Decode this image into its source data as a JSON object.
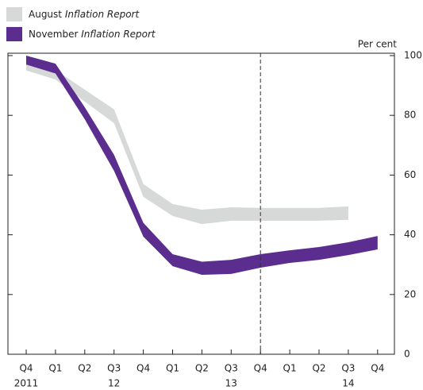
{
  "chart_data": {
    "type": "band",
    "unit_label": "Per cent",
    "categories": [
      "Q4",
      "Q1",
      "Q2",
      "Q3",
      "Q4",
      "Q1",
      "Q2",
      "Q3",
      "Q4",
      "Q1",
      "Q2",
      "Q3",
      "Q4"
    ],
    "year_labels": [
      "2011",
      null,
      null,
      "12",
      null,
      null,
      null,
      "13",
      null,
      null,
      null,
      "14",
      null
    ],
    "series": [
      {
        "name": "August",
        "name_italic": "Inflation Report",
        "color": "#d7d9d9",
        "upper": [
          100,
          95.2,
          88.6,
          82,
          57,
          50.3,
          48.4,
          49.2,
          49,
          49,
          49,
          49.5,
          null
        ],
        "lower": [
          95,
          92,
          84.6,
          77.4,
          52.7,
          46.3,
          43.6,
          44.7,
          44.7,
          44.7,
          44.7,
          45,
          null
        ]
      },
      {
        "name": "November",
        "name_italic": "Inflation Report",
        "color": "#5b2d8e",
        "upper": [
          100,
          97.3,
          82.7,
          66.8,
          44,
          33.5,
          31,
          31.6,
          33.5,
          34.8,
          35.9,
          37.5,
          39.6
        ],
        "lower": [
          97,
          94,
          78.7,
          61.4,
          39.4,
          29.5,
          26.6,
          26.9,
          29,
          30.6,
          31.6,
          33.2,
          35.1
        ]
      }
    ],
    "dashed_line_category": 8,
    "ylim": [
      0,
      100
    ],
    "yticks": [
      0,
      20,
      40,
      60,
      80,
      100
    ]
  }
}
